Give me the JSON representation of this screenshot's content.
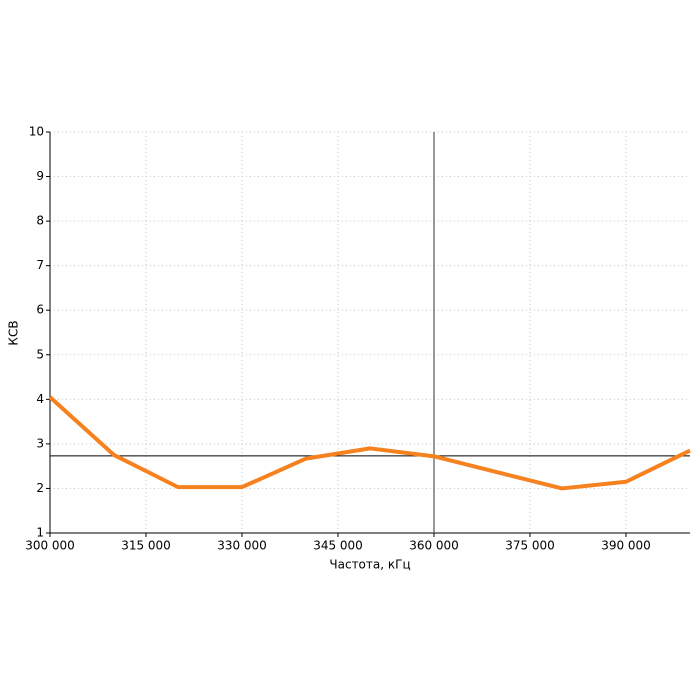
{
  "chart_data": {
    "type": "line",
    "x_label": "Частота, кГц",
    "y_label": "КСВ",
    "xlim": [
      300000,
      400000
    ],
    "xticks": [
      {
        "value": 300000,
        "label": "300 000"
      },
      {
        "value": 315000,
        "label": "315 000"
      },
      {
        "value": 330000,
        "label": "330 000"
      },
      {
        "value": 345000,
        "label": "345 000"
      },
      {
        "value": 360000,
        "label": "360 000"
      },
      {
        "value": 375000,
        "label": "375 000"
      },
      {
        "value": 390000,
        "label": "390 000"
      }
    ],
    "ylim": [
      1,
      10
    ],
    "yticks": [
      1,
      2,
      3,
      4,
      5,
      6,
      7,
      8,
      9,
      10
    ],
    "grid": true,
    "x": [
      300000,
      310000,
      320000,
      330000,
      340000,
      350000,
      360000,
      380000,
      390000,
      400000
    ],
    "series": [
      {
        "color": "#f5821f",
        "values": [
          4.05,
          2.75,
          2.03,
          2.03,
          2.67,
          2.9,
          2.72,
          2.0,
          2.15,
          2.85
        ]
      }
    ],
    "crosshair": {
      "x": 360000,
      "y": 2.73
    }
  }
}
